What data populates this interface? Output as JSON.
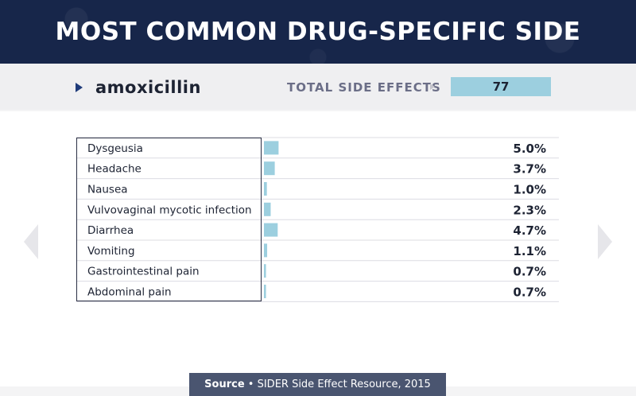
{
  "title": "MOST COMMON DRUG-SPECIFIC SIDE EFFECTS",
  "drug": "amoxicillin",
  "total_label": "TOTAL SIDE EFFECTS",
  "total_value": "77",
  "source": {
    "label": "Source",
    "separator": "•",
    "text": "SIDER Side Effect Resource, 2015"
  },
  "colors": {
    "header": "#17264a",
    "bar": "#9ccfdf",
    "text": "#1d2333"
  },
  "chart_data": {
    "type": "bar",
    "orientation": "horizontal",
    "categories": [
      "Dysgeusia",
      "Headache",
      "Nausea",
      "Vulvovaginal mycotic infection",
      "Diarrhea",
      "Vomiting",
      "Gastrointestinal pain",
      "Abdominal pain"
    ],
    "values": [
      5.0,
      3.7,
      1.0,
      2.3,
      4.7,
      1.1,
      0.7,
      0.7
    ],
    "value_labels": [
      "5.0%",
      "3.7%",
      "1.0%",
      "2.3%",
      "4.7%",
      "1.1%",
      "0.7%",
      "0.7%"
    ],
    "unit": "%",
    "xlim": [
      0,
      100
    ],
    "grid": false,
    "legend": "none"
  }
}
